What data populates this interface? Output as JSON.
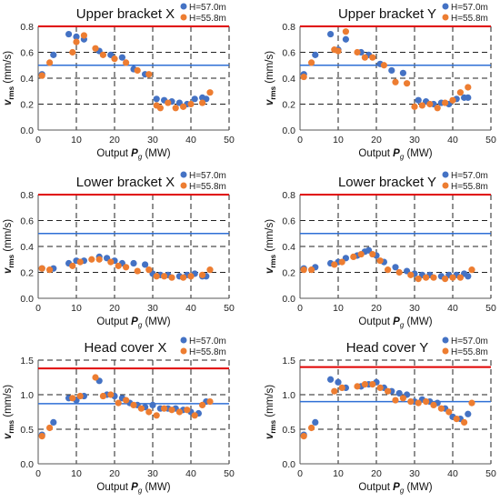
{
  "colors": {
    "h570": "#4472C4",
    "h558": "#ED7D31",
    "limit_red": "#E00000",
    "limit_blue": "#2E6FD6",
    "grid": "#222222"
  },
  "chart_data": [
    {
      "id": "upper-x",
      "type": "scatter",
      "title": "Upper bracket X",
      "xlabel": "Output P_g (MW)",
      "ylabel": "v_rms (mm/s)",
      "xlim": [
        0,
        50
      ],
      "ylim": [
        0,
        0.8
      ],
      "xticks": [
        0,
        10,
        20,
        30,
        40,
        50
      ],
      "yticks": [
        0.0,
        0.2,
        0.4,
        0.6,
        0.8
      ],
      "ytick_labels": [
        "0.0",
        "0.2",
        "0.4",
        "0.6",
        "0.8"
      ],
      "grid": true,
      "legend": "top-right",
      "hlines": [
        {
          "y": 0.8,
          "color": "red"
        },
        {
          "y": 0.5,
          "color": "blue"
        }
      ],
      "series": [
        {
          "name": "H=57.0m",
          "color": "h570",
          "x": [
            1,
            4,
            8,
            10,
            12,
            16,
            19,
            22,
            25,
            28,
            31,
            33,
            35,
            37,
            39,
            41,
            43,
            44
          ],
          "y": [
            0.43,
            0.58,
            0.74,
            0.72,
            0.7,
            0.61,
            0.58,
            0.56,
            0.47,
            0.43,
            0.24,
            0.23,
            0.22,
            0.21,
            0.2,
            0.24,
            0.25,
            0.24
          ]
        },
        {
          "name": "H=55.8m",
          "color": "h558",
          "x": [
            1,
            3,
            9,
            10,
            12,
            15,
            17,
            20,
            23,
            26,
            29,
            31,
            32,
            34,
            36,
            38,
            40,
            43,
            45
          ],
          "y": [
            0.42,
            0.52,
            0.6,
            0.68,
            0.73,
            0.63,
            0.58,
            0.55,
            0.52,
            0.46,
            0.43,
            0.19,
            0.17,
            0.21,
            0.17,
            0.18,
            0.2,
            0.21,
            0.29
          ]
        }
      ]
    },
    {
      "id": "upper-y",
      "type": "scatter",
      "title": "Upper bracket Y",
      "xlabel": "Output P_g (MW)",
      "ylabel": "v_rms (mm/s)",
      "xlim": [
        0,
        50
      ],
      "ylim": [
        0,
        0.8
      ],
      "xticks": [
        0,
        10,
        20,
        30,
        40,
        50
      ],
      "yticks": [
        0.0,
        0.2,
        0.4,
        0.6,
        0.8
      ],
      "ytick_labels": [
        "0.0",
        "0.2",
        "0.4",
        "0.6",
        "0.8"
      ],
      "grid": true,
      "legend": "top-right",
      "hlines": [
        {
          "y": 0.8,
          "color": "red"
        },
        {
          "y": 0.5,
          "color": "blue"
        }
      ],
      "series": [
        {
          "name": "H=57.0m",
          "color": "h570",
          "x": [
            1,
            4,
            8,
            10,
            12,
            16,
            18,
            21,
            24,
            27,
            31,
            33,
            35,
            37,
            39,
            41,
            43,
            44
          ],
          "y": [
            0.43,
            0.58,
            0.74,
            0.62,
            0.7,
            0.6,
            0.58,
            0.51,
            0.46,
            0.44,
            0.23,
            0.22,
            0.2,
            0.21,
            0.2,
            0.24,
            0.25,
            0.25
          ]
        },
        {
          "name": "H=55.8m",
          "color": "h558",
          "x": [
            1,
            3,
            9,
            10,
            12,
            15,
            17,
            19,
            22,
            25,
            28,
            30,
            32,
            34,
            36,
            38,
            40,
            42,
            44
          ],
          "y": [
            0.41,
            0.52,
            0.62,
            0.61,
            0.76,
            0.6,
            0.56,
            0.56,
            0.5,
            0.37,
            0.36,
            0.18,
            0.19,
            0.2,
            0.17,
            0.21,
            0.23,
            0.29,
            0.33
          ]
        }
      ]
    },
    {
      "id": "lower-x",
      "type": "scatter",
      "title": "Lower bracket X",
      "xlabel": "Output P_g (MW)",
      "ylabel": "v_rms (mm/s)",
      "xlim": [
        0,
        50
      ],
      "ylim": [
        0,
        0.8
      ],
      "xticks": [
        0,
        10,
        20,
        30,
        40,
        50
      ],
      "yticks": [
        0.0,
        0.2,
        0.4,
        0.6,
        0.8
      ],
      "ytick_labels": [
        "0.0",
        "0.2",
        "0.4",
        "0.6",
        "0.8"
      ],
      "grid": true,
      "legend": "top-right",
      "hlines": [
        {
          "y": 0.8,
          "color": "red"
        },
        {
          "y": 0.5,
          "color": "blue"
        }
      ],
      "series": [
        {
          "name": "H=57.0m",
          "color": "h570",
          "x": [
            1,
            4,
            8,
            10,
            12,
            16,
            18,
            20,
            22,
            25,
            28,
            30,
            32,
            34,
            37,
            39,
            41,
            43,
            44
          ],
          "y": [
            0.23,
            0.23,
            0.27,
            0.29,
            0.29,
            0.32,
            0.31,
            0.29,
            0.27,
            0.27,
            0.26,
            0.19,
            0.18,
            0.18,
            0.17,
            0.18,
            0.19,
            0.17,
            0.17
          ]
        },
        {
          "name": "H=55.8m",
          "color": "h558",
          "x": [
            1,
            3,
            9,
            11,
            14,
            16,
            19,
            21,
            23,
            26,
            29,
            31,
            33,
            35,
            38,
            40,
            43,
            45
          ],
          "y": [
            0.23,
            0.22,
            0.25,
            0.28,
            0.3,
            0.3,
            0.28,
            0.25,
            0.24,
            0.21,
            0.22,
            0.17,
            0.17,
            0.16,
            0.16,
            0.17,
            0.18,
            0.22
          ]
        }
      ]
    },
    {
      "id": "lower-y",
      "type": "scatter",
      "title": "Lower bracket Y",
      "xlabel": "Output P_g (MW)",
      "ylabel": "v_rms (mm/s)",
      "xlim": [
        0,
        50
      ],
      "ylim": [
        0,
        0.8
      ],
      "xticks": [
        0,
        10,
        20,
        30,
        40,
        50
      ],
      "yticks": [
        0.0,
        0.2,
        0.4,
        0.6,
        0.8
      ],
      "ytick_labels": [
        "0.0",
        "0.2",
        "0.4",
        "0.6",
        "0.8"
      ],
      "grid": true,
      "legend": "top-right",
      "hlines": [
        {
          "y": 0.8,
          "color": "red"
        },
        {
          "y": 0.5,
          "color": "blue"
        }
      ],
      "series": [
        {
          "name": "H=57.0m",
          "color": "h570",
          "x": [
            1,
            4,
            8,
            10,
            12,
            15,
            17,
            18,
            20,
            22,
            25,
            28,
            30,
            32,
            34,
            37,
            39,
            41,
            43,
            44
          ],
          "y": [
            0.23,
            0.24,
            0.27,
            0.28,
            0.31,
            0.33,
            0.36,
            0.37,
            0.33,
            0.28,
            0.24,
            0.21,
            0.19,
            0.18,
            0.18,
            0.17,
            0.18,
            0.18,
            0.19,
            0.17
          ]
        },
        {
          "name": "H=55.8m",
          "color": "h558",
          "x": [
            1,
            3,
            9,
            11,
            14,
            16,
            19,
            21,
            23,
            26,
            29,
            31,
            33,
            35,
            38,
            40,
            42,
            45
          ],
          "y": [
            0.22,
            0.22,
            0.26,
            0.28,
            0.32,
            0.34,
            0.34,
            0.29,
            0.22,
            0.2,
            0.18,
            0.15,
            0.16,
            0.16,
            0.15,
            0.16,
            0.16,
            0.22
          ]
        }
      ]
    },
    {
      "id": "head-x",
      "type": "scatter",
      "title": "Head cover X",
      "xlabel": "Output P_g (MW)",
      "ylabel": "v_rms (mm/s)",
      "xlim": [
        0,
        50
      ],
      "ylim": [
        0,
        1.5
      ],
      "xticks": [
        0,
        10,
        20,
        30,
        40,
        50
      ],
      "yticks": [
        0.0,
        0.5,
        1.0,
        1.5
      ],
      "ytick_labels": [
        "0.0",
        "0.5",
        "1.0",
        "1.5"
      ],
      "grid": true,
      "legend": "top-right",
      "hlines": [
        {
          "y": 1.38,
          "color": "red"
        },
        {
          "y": 0.87,
          "color": "blue"
        }
      ],
      "series": [
        {
          "name": "H=57.0m",
          "color": "h570",
          "x": [
            1,
            4,
            8,
            10,
            12,
            16,
            18,
            20,
            22,
            24,
            26,
            28,
            30,
            32,
            34,
            36,
            38,
            40,
            42,
            44
          ],
          "y": [
            0.42,
            0.6,
            0.95,
            0.92,
            0.98,
            1.2,
            1.0,
            0.98,
            0.95,
            0.88,
            0.85,
            0.82,
            0.85,
            0.8,
            0.8,
            0.8,
            0.78,
            0.75,
            0.73,
            0.9
          ]
        },
        {
          "name": "H=55.8m",
          "color": "h558",
          "x": [
            1,
            3,
            9,
            11,
            15,
            17,
            19,
            21,
            23,
            25,
            27,
            29,
            31,
            33,
            35,
            37,
            39,
            41,
            43,
            45
          ],
          "y": [
            0.4,
            0.52,
            0.95,
            0.98,
            1.25,
            0.98,
            1.0,
            0.88,
            0.92,
            0.85,
            0.8,
            0.75,
            0.7,
            0.8,
            0.78,
            0.75,
            0.78,
            0.7,
            0.85,
            0.9
          ]
        }
      ]
    },
    {
      "id": "head-y",
      "type": "scatter",
      "title": "Head cover Y",
      "xlabel": "Output P_g (MW)",
      "ylabel": "v_rms (mm/s)",
      "xlim": [
        0,
        50
      ],
      "ylim": [
        0,
        1.5
      ],
      "xticks": [
        0,
        10,
        20,
        30,
        40,
        50
      ],
      "yticks": [
        0.0,
        0.5,
        1.0,
        1.5
      ],
      "ytick_labels": [
        "0.0",
        "0.5",
        "1.0",
        "1.5"
      ],
      "grid": true,
      "legend": "top-right",
      "hlines": [
        {
          "y": 1.4,
          "color": "red"
        },
        {
          "y": 0.9,
          "color": "blue"
        }
      ],
      "series": [
        {
          "name": "H=57.0m",
          "color": "h570",
          "x": [
            1,
            4,
            8,
            10,
            12,
            16,
            18,
            20,
            22,
            24,
            26,
            28,
            30,
            32,
            34,
            36,
            38,
            40,
            42,
            44
          ],
          "y": [
            0.42,
            0.6,
            1.22,
            1.18,
            1.1,
            1.12,
            1.15,
            1.18,
            1.1,
            1.05,
            1.02,
            1.0,
            0.9,
            0.93,
            0.9,
            0.88,
            0.8,
            0.68,
            0.65,
            0.72
          ]
        },
        {
          "name": "H=55.8m",
          "color": "h558",
          "x": [
            1,
            3,
            9,
            11,
            15,
            17,
            19,
            21,
            23,
            25,
            27,
            29,
            31,
            33,
            35,
            37,
            39,
            41,
            43,
            45
          ],
          "y": [
            0.4,
            0.52,
            1.05,
            1.1,
            1.12,
            1.15,
            1.15,
            1.1,
            1.05,
            0.92,
            0.95,
            0.9,
            0.88,
            0.9,
            0.85,
            0.8,
            0.75,
            0.65,
            0.6,
            0.88
          ]
        }
      ]
    }
  ]
}
